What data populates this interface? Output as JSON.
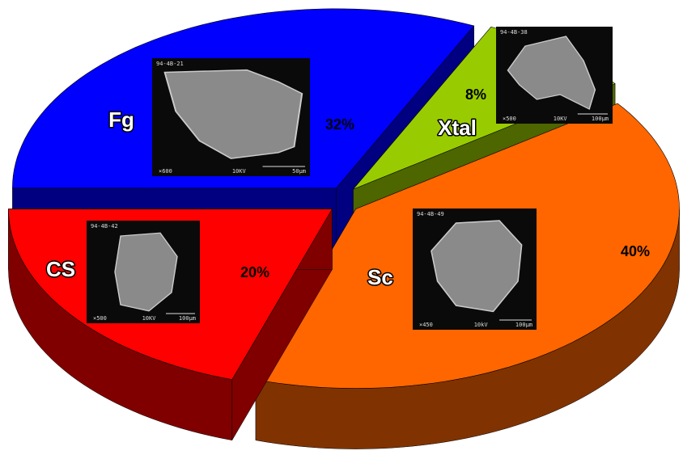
{
  "chart_data": {
    "type": "pie",
    "categories": [
      "Fg",
      "Xtal",
      "Sc",
      "CS"
    ],
    "values": [
      32,
      8,
      40,
      20
    ],
    "value_labels": [
      "32%",
      "8%",
      "40%",
      "20%"
    ],
    "colors": [
      "#0000ff",
      "#99cc00",
      "#ff6600",
      "#ff0000"
    ],
    "micrographs": [
      {
        "id": "94-4B-21",
        "magnification": "×600",
        "voltage": "10KV",
        "scale": "50µm"
      },
      {
        "id": "94-4B-38",
        "magnification": "×500",
        "voltage": "10KV",
        "scale": "100µm"
      },
      {
        "id": "94-4B-49",
        "magnification": "×450",
        "voltage": "10kV",
        "scale": "100µm"
      },
      {
        "id": "94-4B-42",
        "magnification": "×500",
        "voltage": "10KV",
        "scale": "100µm"
      }
    ]
  }
}
